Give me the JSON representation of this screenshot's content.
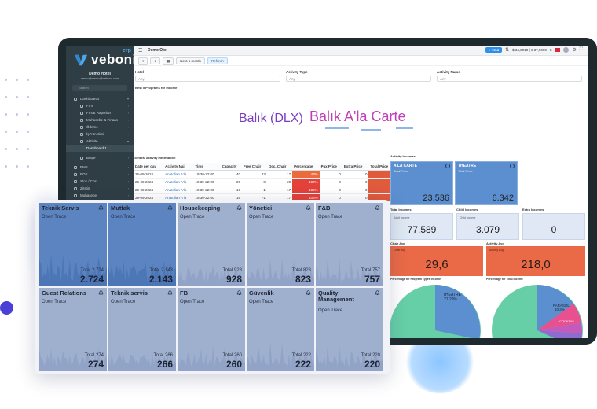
{
  "brand": {
    "name": "veboni",
    "suffix": "erp"
  },
  "topbar": {
    "title": "Demo Otel",
    "new_label": "+ YENİ",
    "currency": "$ 34,0010 | € 37,9000",
    "currency_tail": "$"
  },
  "toolbar": {
    "range_label": "Next 1 month",
    "refresh_label": "Refresh"
  },
  "sidebar": {
    "user_name": "Demo Hotel",
    "user_email": "demo@demo@veboni.com",
    "search_placeholder": "Search",
    "items": [
      {
        "label": "Dashboards"
      },
      {
        "label": "Fırın"
      },
      {
        "label": "Fırsat Raporları"
      },
      {
        "label": "Muhasebe & Finans"
      },
      {
        "label": "Ödeme"
      },
      {
        "label": "İş Yönetimi"
      },
      {
        "label": "Aktivite"
      },
      {
        "label": "Dashboard 1"
      },
      {
        "label": "Bütçe"
      },
      {
        "label": "PMS"
      },
      {
        "label": "POS"
      },
      {
        "label": "Stok / Cost"
      },
      {
        "label": "Zirstin"
      },
      {
        "label": "Muhasebe"
      }
    ]
  },
  "filters": {
    "hotel": "Hotel",
    "activity_type": "Activity Type",
    "activity_name": "Activity Name",
    "any": "Any"
  },
  "best_programs": {
    "title": "Best 5 Programs for Income",
    "words": [
      "Balık (DLX)",
      "Balık A'la Carte"
    ]
  },
  "general_activity": {
    "title": "General Activity Information",
    "columns": [
      "Date per day",
      "Activity Nai",
      "Time",
      "Capacity",
      "Free Chair",
      "Occ. Chair",
      "Percentage",
      "Pax Price",
      "Extra Price",
      "Total Price"
    ],
    "rows": [
      [
        "26-09-2024",
        "Anatolian A'la",
        "19:30-22:00",
        "40",
        "23",
        "17",
        "43%",
        "0",
        "0",
        "0"
      ],
      [
        "26-09-2024",
        "Anatolian A'la",
        "19:30-22:00",
        "20",
        "0",
        "20",
        "100%",
        "0",
        "0",
        "0"
      ],
      [
        "29-09-2024",
        "Anatolian A'la",
        "19:30-22:00",
        "16",
        "-1",
        "17",
        "106%",
        "0",
        "0",
        "0"
      ],
      [
        "29-09-2024",
        "Anatolian A'la",
        "19:30-22:00",
        "16",
        "-1",
        "17",
        "106%",
        "0",
        "0",
        "0"
      ]
    ]
  },
  "activity_incomes": {
    "title": "Activity Incomes",
    "cards": [
      {
        "name": "A LA CARTE",
        "sub": "Total Price",
        "value": "23.536"
      },
      {
        "name": "THEATRE",
        "sub": "Total Price",
        "value": "6.342"
      }
    ]
  },
  "metrics": {
    "total_incomes": {
      "label": "Total Incomes",
      "sub": "Adult Income",
      "value": "77.589"
    },
    "child_incomes": {
      "label": "Child Incomes",
      "sub": "Child Income",
      "value": "3.079"
    },
    "extra_incomes": {
      "label": "Extra Incomes",
      "sub": "",
      "value": "0"
    },
    "chair_avg": {
      "label": "Chair Avg",
      "sub": "Chair Avg",
      "value": "29,6"
    },
    "activity_avg": {
      "label": "Activity Avg",
      "sub": "Activity Avg",
      "value": "218,0"
    }
  },
  "pies": {
    "program_types": {
      "label": "Percentage for Program Types Income",
      "slice_label": "THEATRE",
      "slice_pct": "21,29%"
    },
    "total_income": {
      "label": "Percentage for Total Income",
      "slice_label": "PARASOL",
      "slice_pct": "10,3%",
      "slice2_label": "COCKTAIL"
    }
  },
  "tiles": [
    {
      "name": "Teknik Servis",
      "status": "Open Trace",
      "total_label": "Total 2.724",
      "total": "2.724",
      "highlight": true
    },
    {
      "name": "Mutfak",
      "status": "Open Trace",
      "total_label": "Total 2.143",
      "total": "2.143",
      "highlight": true
    },
    {
      "name": "Housekeeping",
      "status": "Open Trace",
      "total_label": "Total 928",
      "total": "928",
      "highlight": false
    },
    {
      "name": "Yönetici",
      "status": "Open Trace",
      "total_label": "Total 823",
      "total": "823",
      "highlight": false
    },
    {
      "name": "F&B",
      "status": "Open Trace",
      "total_label": "Total 757",
      "total": "757",
      "highlight": false
    },
    {
      "name": "Guest Relations",
      "status": "Open Trace",
      "total_label": "Total 274",
      "total": "274",
      "highlight": false
    },
    {
      "name": "Teknik servis",
      "status": "Open Trace",
      "total_label": "Total 266",
      "total": "266",
      "highlight": false
    },
    {
      "name": "FB",
      "status": "Open Trace",
      "total_label": "Total 260",
      "total": "260",
      "highlight": false
    },
    {
      "name": "Güvenlik",
      "status": "Open Trace",
      "total_label": "Total 222",
      "total": "222",
      "highlight": false
    },
    {
      "name": "Quality Management",
      "status": "Open Trace",
      "total_label": "Total 220",
      "total": "220",
      "highlight": false
    }
  ],
  "colors": {
    "sidebar": "#2f3d44",
    "accent_blue": "#2f8fe8",
    "tile_highlight": "#5b84c0",
    "tile": "#9fb0cf",
    "avg_orange": "#ea6a47",
    "pie_teal": "#66cfa8"
  }
}
